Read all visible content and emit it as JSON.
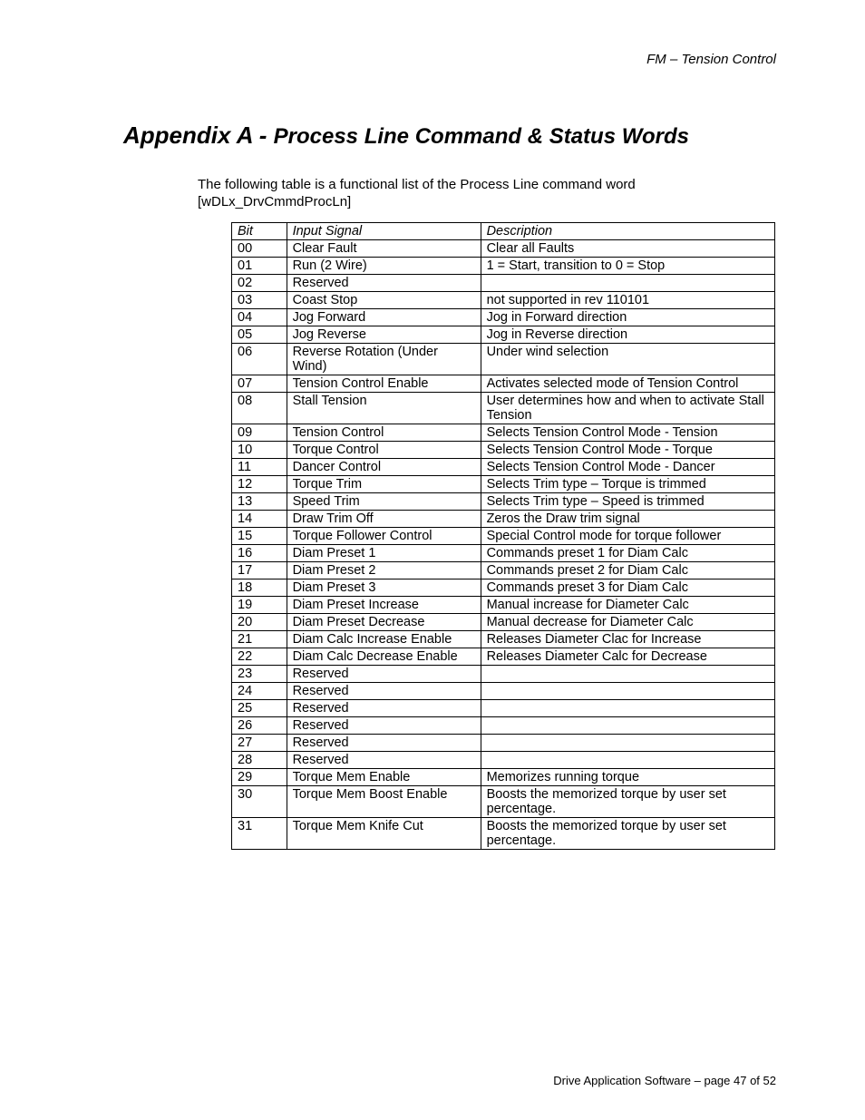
{
  "header": {
    "right": "FM – Tension Control"
  },
  "title": {
    "prefix": "Appendix A - ",
    "main": "Process Line Command & Status Words"
  },
  "intro": {
    "line1": "The following table is a functional list of the Process Line command word",
    "line2": "[wDLx_DrvCmmdProcLn]"
  },
  "table": {
    "headers": {
      "bit": "Bit",
      "signal": "Input Signal",
      "description": "Description"
    },
    "rows": [
      {
        "bit": "00",
        "signal": "Clear Fault",
        "description": "Clear all Faults"
      },
      {
        "bit": "01",
        "signal": "Run (2 Wire)",
        "description": "1 = Start, transition to 0 = Stop"
      },
      {
        "bit": "02",
        "signal": "Reserved",
        "description": ""
      },
      {
        "bit": "03",
        "signal": "Coast Stop",
        "description": "not supported in rev 110101"
      },
      {
        "bit": "04",
        "signal": "Jog Forward",
        "description": "Jog in Forward direction"
      },
      {
        "bit": "05",
        "signal": "Jog Reverse",
        "description": "Jog in Reverse direction"
      },
      {
        "bit": "06",
        "signal": "Reverse Rotation (Under Wind)",
        "description": "Under wind selection"
      },
      {
        "bit": "07",
        "signal": "Tension Control Enable",
        "description": "Activates selected mode of Tension Control"
      },
      {
        "bit": "08",
        "signal": "Stall Tension",
        "description": "User determines how and when to activate Stall Tension"
      },
      {
        "bit": "09",
        "signal": "Tension Control",
        "description": "Selects Tension Control Mode - Tension"
      },
      {
        "bit": "10",
        "signal": "Torque Control",
        "description": "Selects Tension Control Mode - Torque"
      },
      {
        "bit": "11",
        "signal": "Dancer Control",
        "description": "Selects Tension Control Mode - Dancer"
      },
      {
        "bit": "12",
        "signal": "Torque Trim",
        "description": "Selects Trim type – Torque is trimmed"
      },
      {
        "bit": "13",
        "signal": "Speed Trim",
        "description": "Selects Trim type – Speed is trimmed"
      },
      {
        "bit": "14",
        "signal": "Draw Trim Off",
        "description": "Zeros the Draw trim signal"
      },
      {
        "bit": "15",
        "signal": "Torque Follower Control",
        "description": "Special Control mode for torque follower"
      },
      {
        "bit": "16",
        "signal": "Diam Preset 1",
        "description": "Commands preset 1 for Diam Calc"
      },
      {
        "bit": "17",
        "signal": "Diam Preset 2",
        "description": "Commands preset 2 for Diam Calc"
      },
      {
        "bit": "18",
        "signal": "Diam Preset 3",
        "description": "Commands preset 3 for Diam Calc"
      },
      {
        "bit": "19",
        "signal": "Diam Preset Increase",
        "description": "Manual increase for Diameter Calc"
      },
      {
        "bit": "20",
        "signal": "Diam Preset Decrease",
        "description": "Manual decrease for Diameter Calc"
      },
      {
        "bit": "21",
        "signal": "Diam Calc Increase Enable",
        "description": "Releases Diameter Clac for Increase"
      },
      {
        "bit": "22",
        "signal": "Diam Calc Decrease Enable",
        "description": "Releases Diameter Calc for Decrease"
      },
      {
        "bit": "23",
        "signal": "Reserved",
        "description": ""
      },
      {
        "bit": "24",
        "signal": "Reserved",
        "description": ""
      },
      {
        "bit": "25",
        "signal": "Reserved",
        "description": ""
      },
      {
        "bit": "26",
        "signal": "Reserved",
        "description": ""
      },
      {
        "bit": "27",
        "signal": "Reserved",
        "description": ""
      },
      {
        "bit": "28",
        "signal": "Reserved",
        "description": ""
      },
      {
        "bit": "29",
        "signal": "Torque Mem Enable",
        "description": "Memorizes running torque"
      },
      {
        "bit": "30",
        "signal": "Torque Mem Boost Enable",
        "description": "Boosts the memorized torque by user set percentage."
      },
      {
        "bit": "31",
        "signal": "Torque Mem Knife Cut",
        "description": "Boosts the memorized torque by user set percentage."
      }
    ]
  },
  "footer": {
    "text": "Drive Application Software – page 47 of 52"
  }
}
